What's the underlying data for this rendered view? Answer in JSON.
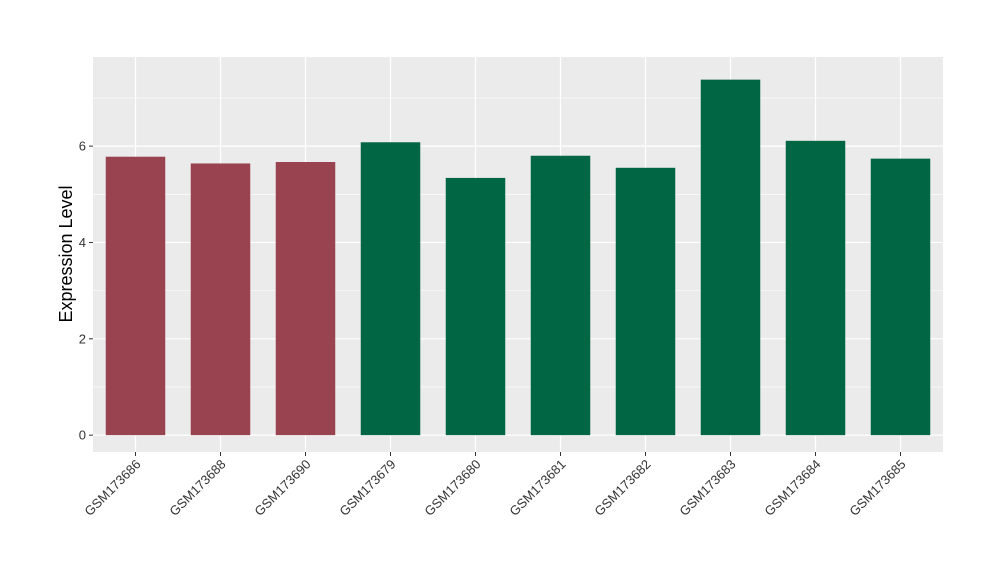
{
  "chart_data": {
    "type": "bar",
    "ylabel": "Expression Level",
    "xlabel": "",
    "title": "",
    "ylim": [
      -0.35,
      7.85
    ],
    "yticks": [
      0,
      2,
      4,
      6
    ],
    "grid": true,
    "categories": [
      "GSM173686",
      "GSM173688",
      "GSM173690",
      "GSM173679",
      "GSM173680",
      "GSM173681",
      "GSM173682",
      "GSM173683",
      "GSM173684",
      "GSM173685"
    ],
    "values": [
      5.78,
      5.64,
      5.67,
      6.08,
      5.34,
      5.8,
      5.55,
      7.38,
      6.11,
      5.74
    ],
    "colors": [
      "#9a4350",
      "#9a4350",
      "#9a4350",
      "#006643",
      "#006643",
      "#006643",
      "#006643",
      "#006643",
      "#006643",
      "#006643"
    ],
    "panel_color": "#ebebeb",
    "grid_color": "#ffffff"
  }
}
